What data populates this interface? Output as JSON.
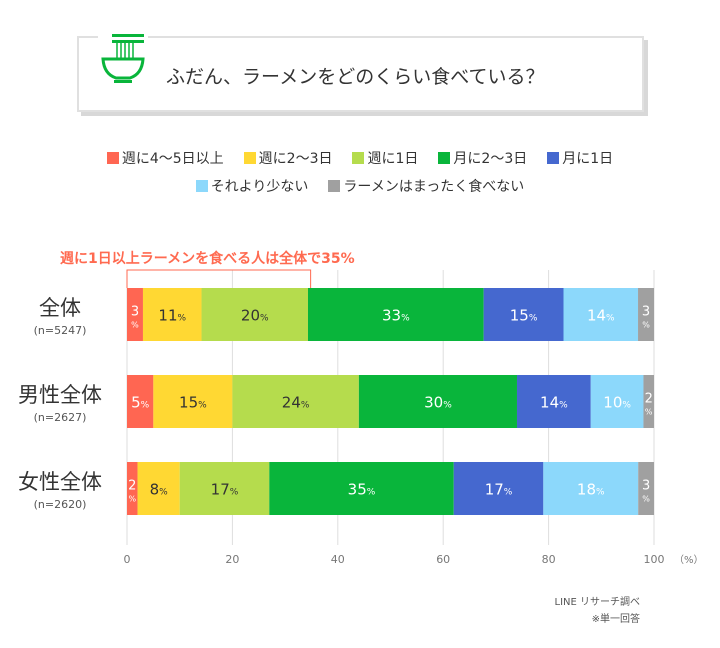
{
  "title": "ふだん、ラーメンをどのくらい食べている？",
  "icon": "ramen-bowl-icon",
  "annotation": "週に1日以上ラーメンを食べる人は全体で35%",
  "source": "LINE リサーチ調べ",
  "footnote": "※単一回答",
  "chart_data": {
    "type": "bar",
    "orientation": "horizontal-stacked-100",
    "xlim": [
      0,
      100
    ],
    "xticks": [
      "0",
      "20",
      "40",
      "60",
      "80",
      "100"
    ],
    "xunit": "（%）",
    "grid": true,
    "legend_placement": "top",
    "legend": [
      {
        "name": "週に4〜5日以上",
        "color": "#ff6652"
      },
      {
        "name": "週に2〜3日",
        "color": "#ffd833"
      },
      {
        "name": "週に1日",
        "color": "#b5dc4d"
      },
      {
        "name": "月に2〜3日",
        "color": "#09b53b"
      },
      {
        "name": "月に1日",
        "color": "#4568cf"
      },
      {
        "name": "それより少ない",
        "color": "#8cd8fb"
      },
      {
        "name": "ラーメンはまったく食べない",
        "color": "#a0a0a0"
      }
    ],
    "categories": [
      {
        "label": "全体",
        "n": "(n=5247)",
        "values": [
          3,
          11,
          20,
          33,
          15,
          14,
          3
        ]
      },
      {
        "label": "男性全体",
        "n": "(n=2627)",
        "values": [
          5,
          15,
          24,
          30,
          14,
          10,
          2
        ]
      },
      {
        "label": "女性全体",
        "n": "(n=2620)",
        "values": [
          2,
          8,
          17,
          35,
          17,
          18,
          3
        ]
      }
    ]
  }
}
